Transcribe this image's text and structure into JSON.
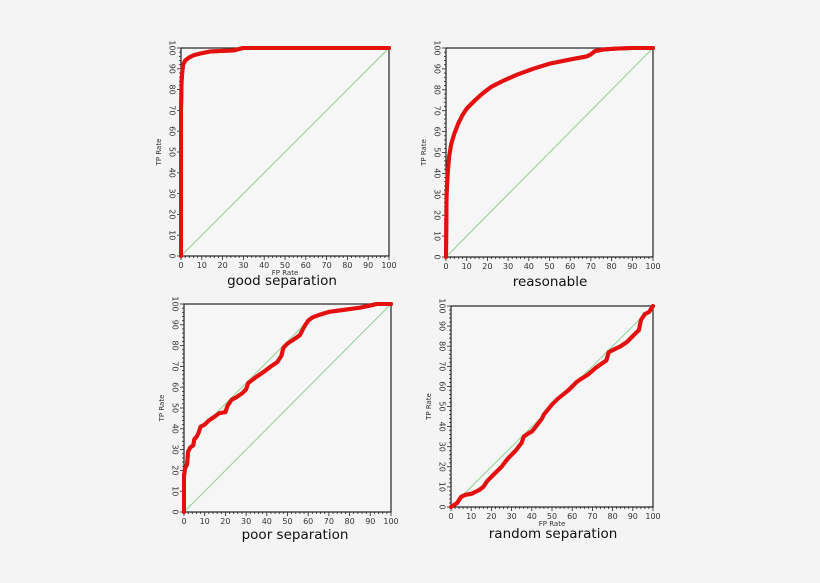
{
  "colors": {
    "background": "#f4f4f4",
    "plot_bg": "#f6f6f6",
    "axis": "#222222",
    "curve": "#e41010",
    "diagonal": "#8fcf8f"
  },
  "chart_data": [
    {
      "type": "line",
      "title": "good separation",
      "xlabel": "FP Rate",
      "ylabel": "TP Rate",
      "xlim": [
        0,
        100
      ],
      "ylim": [
        0,
        100
      ],
      "xticks": [
        0,
        10,
        20,
        30,
        40,
        50,
        60,
        70,
        80,
        90,
        100
      ],
      "yticks": [
        0,
        10,
        20,
        30,
        40,
        50,
        60,
        70,
        80,
        90,
        100
      ],
      "grid": false,
      "series": [
        {
          "name": "ROC",
          "x": [
            0,
            0,
            0.3,
            0.6,
            1,
            2,
            4,
            6,
            8,
            10,
            14,
            20,
            25,
            28,
            30,
            40,
            60,
            80,
            100
          ],
          "y": [
            0,
            70,
            84,
            88,
            92,
            94,
            95.5,
            96.5,
            97,
            97.5,
            98.3,
            98.6,
            98.8,
            99.5,
            100,
            100,
            100,
            100,
            100
          ]
        },
        {
          "name": "diagonal",
          "x": [
            0,
            100
          ],
          "y": [
            0,
            100
          ]
        }
      ]
    },
    {
      "type": "line",
      "title": "reasonable",
      "xlabel": "FP Rate",
      "ylabel": "TP Rate",
      "xlim": [
        0,
        100
      ],
      "ylim": [
        0,
        100
      ],
      "xticks": [
        0,
        10,
        20,
        30,
        40,
        50,
        60,
        70,
        80,
        90,
        100
      ],
      "yticks": [
        0,
        10,
        20,
        30,
        40,
        50,
        60,
        70,
        80,
        90,
        100
      ],
      "grid": false,
      "series": [
        {
          "name": "ROC",
          "x": [
            0,
            0.3,
            0.8,
            1.5,
            2.5,
            4,
            6,
            8,
            10,
            14,
            18,
            22,
            28,
            35,
            42,
            50,
            60,
            68,
            70,
            72,
            76,
            82,
            90,
            100
          ],
          "y": [
            0,
            30,
            40,
            48,
            54,
            59,
            64,
            68,
            71,
            75,
            78.5,
            81.5,
            84.5,
            87.5,
            90,
            92.5,
            94.5,
            96,
            97,
            98.5,
            99.3,
            99.7,
            100,
            100
          ]
        },
        {
          "name": "diagonal",
          "x": [
            0,
            100
          ],
          "y": [
            0,
            100
          ]
        }
      ]
    },
    {
      "type": "line",
      "title": "poor separation",
      "xlabel": "FP Rate",
      "ylabel": "TP Rate",
      "xlim": [
        0,
        100
      ],
      "ylim": [
        0,
        100
      ],
      "xticks": [
        0,
        10,
        20,
        30,
        40,
        50,
        60,
        70,
        80,
        90,
        100
      ],
      "yticks": [
        0,
        10,
        20,
        30,
        40,
        50,
        60,
        70,
        80,
        90,
        100
      ],
      "grid": false,
      "series": [
        {
          "name": "ROC",
          "x": [
            0,
            0,
            0.5,
            1.5,
            2,
            3,
            4.5,
            5,
            6,
            7,
            8,
            10,
            12,
            15,
            17,
            20,
            21,
            23,
            25,
            28,
            30,
            31,
            35,
            38,
            42,
            45,
            47,
            48,
            50,
            53,
            56,
            58,
            60,
            62,
            66,
            70,
            78,
            85,
            90,
            93,
            100
          ],
          "y": [
            0,
            17,
            21,
            23,
            29,
            31,
            32,
            35,
            36,
            38,
            41,
            42,
            44,
            46,
            47.5,
            48,
            51,
            54,
            55,
            57,
            59,
            62,
            65,
            67,
            70,
            72,
            75,
            79,
            81,
            83,
            85,
            89,
            92,
            93.5,
            95,
            96.2,
            97.3,
            98.2,
            99.3,
            100,
            100
          ]
        },
        {
          "name": "diagonal",
          "x": [
            0,
            100
          ],
          "y": [
            0,
            100
          ]
        },
        {
          "name": "reference",
          "x": [
            13,
            60
          ],
          "y": [
            45,
            92
          ]
        }
      ]
    },
    {
      "type": "line",
      "title": "random separation",
      "xlabel": "FP Rate",
      "ylabel": "TP Rate",
      "xlim": [
        0,
        100
      ],
      "ylim": [
        0,
        100
      ],
      "xticks": [
        0,
        10,
        20,
        30,
        40,
        50,
        60,
        70,
        80,
        90,
        100
      ],
      "yticks": [
        0,
        10,
        20,
        30,
        40,
        50,
        60,
        70,
        80,
        90,
        100
      ],
      "grid": false,
      "series": [
        {
          "name": "ROC",
          "x": [
            0,
            3,
            5,
            7,
            10,
            14,
            16,
            18,
            21,
            25,
            28,
            32,
            35,
            36,
            39,
            40,
            42,
            45,
            46,
            50,
            53,
            58,
            62,
            64,
            68,
            72,
            77,
            78,
            80,
            84,
            87,
            91,
            93,
            94,
            96,
            98,
            100
          ],
          "y": [
            0,
            2,
            5,
            6,
            6.5,
            8.5,
            10,
            13,
            16,
            20,
            24,
            28,
            32,
            35,
            37,
            37.5,
            40,
            44,
            46,
            51,
            54,
            58,
            62,
            63.5,
            66,
            69.5,
            73,
            77,
            78,
            80,
            82,
            86,
            88,
            93,
            96,
            97,
            100
          ]
        },
        {
          "name": "diagonal",
          "x": [
            0,
            100
          ],
          "y": [
            0,
            100
          ]
        }
      ]
    }
  ],
  "panels": [
    {
      "caption": "good separation",
      "x_axis_label": "FP Rate",
      "y_axis_label": "TP Rate"
    },
    {
      "caption": "reasonable",
      "x_axis_label": "",
      "y_axis_label": "TP Rate"
    },
    {
      "caption": "poor separation",
      "x_axis_label": "",
      "y_axis_label": "TP Rate"
    },
    {
      "caption": "random separation",
      "x_axis_label": "FP Rate",
      "y_axis_label": "TP Rate"
    }
  ]
}
